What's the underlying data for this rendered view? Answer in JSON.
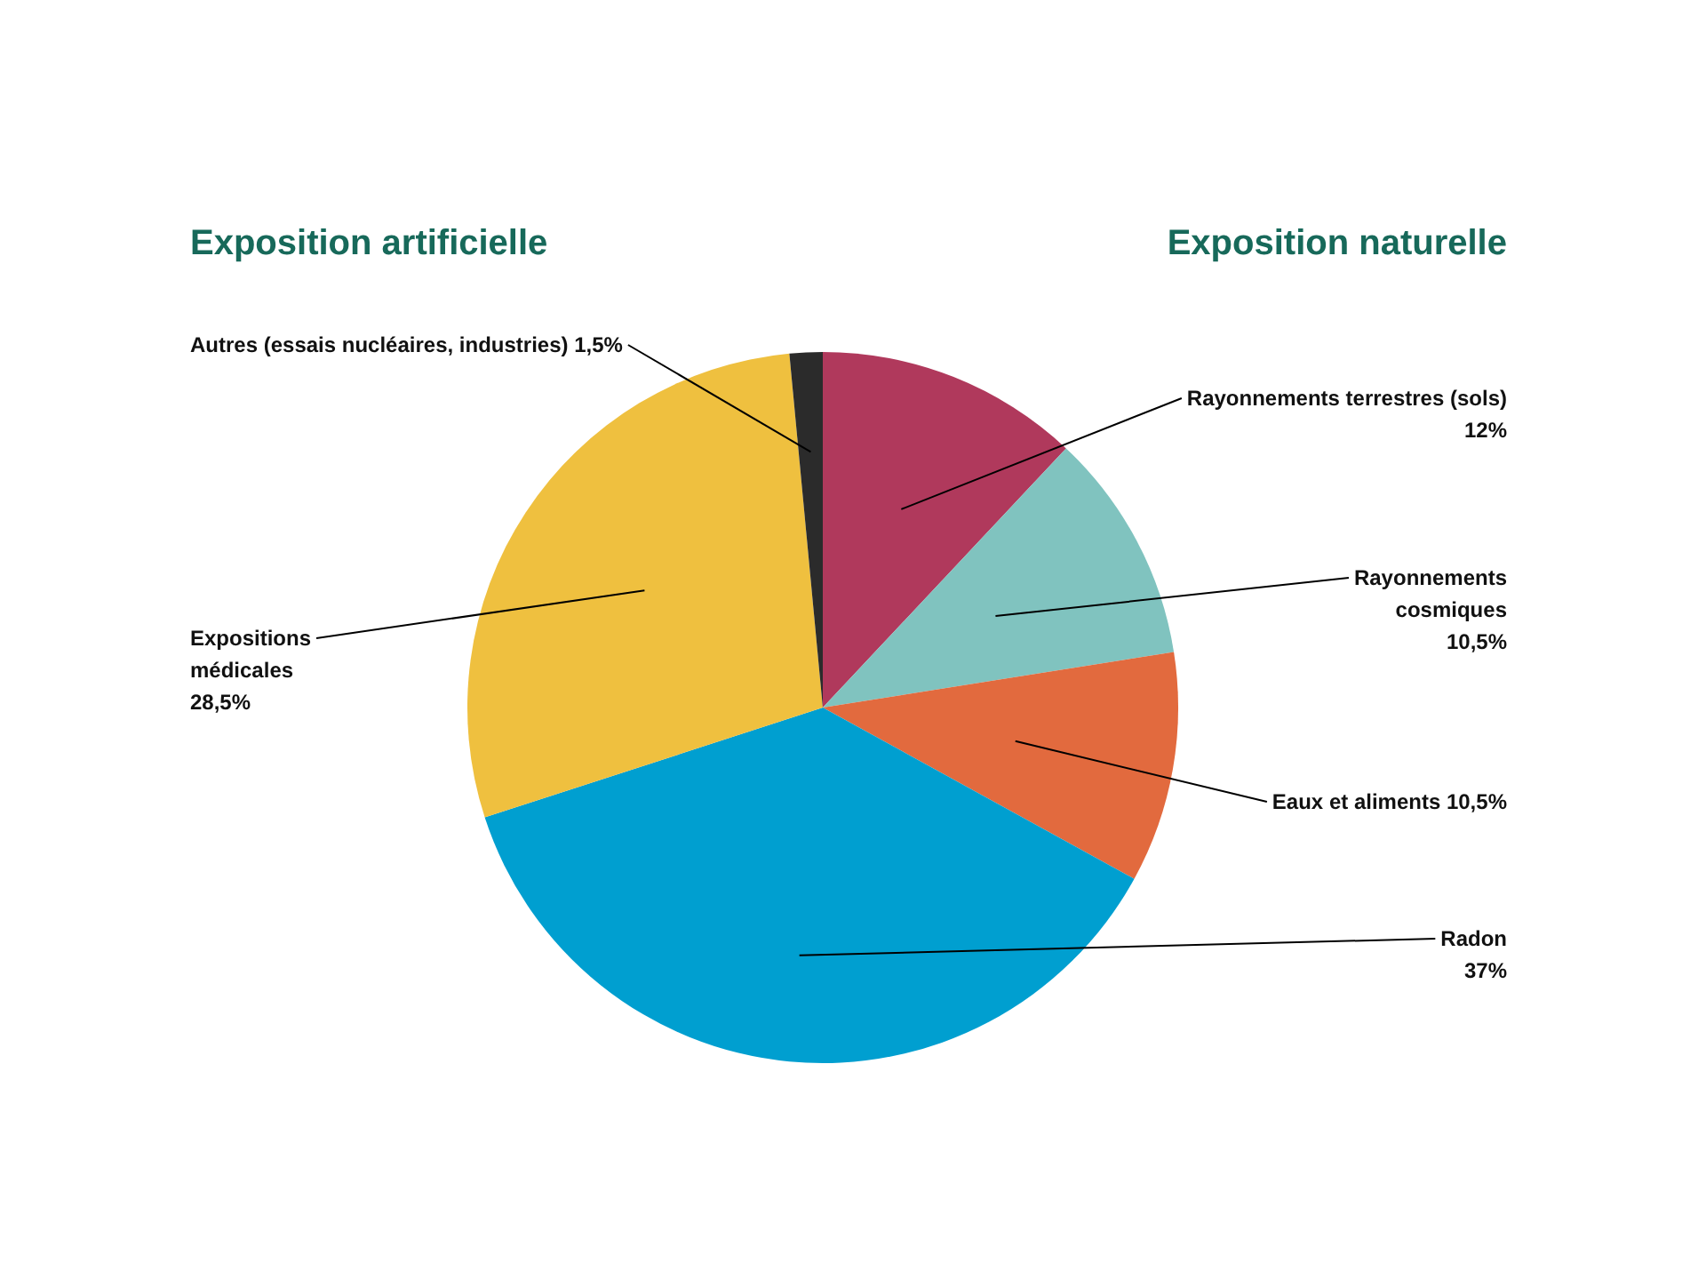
{
  "chart_data": {
    "type": "pie",
    "categories": [
      "Rayonnements terrestres (sols)",
      "Rayonnements cosmiques",
      "Eaux et aliments",
      "Radon",
      "Expositions médicales",
      "Autres (essais nucléaires, industries)"
    ],
    "values": [
      12,
      10.5,
      10.5,
      37,
      28.5,
      1.5
    ],
    "value_labels": [
      "12%",
      "10,5%",
      "10,5%",
      "37%",
      "28,5%",
      "1,5%"
    ],
    "colors": [
      "#b0395c",
      "#80c3bf",
      "#e26a3e",
      "#009fd0",
      "#efc03f",
      "#2b2b2b"
    ],
    "annotations": [
      "Exposition artificielle",
      "Exposition naturelle"
    ]
  }
}
